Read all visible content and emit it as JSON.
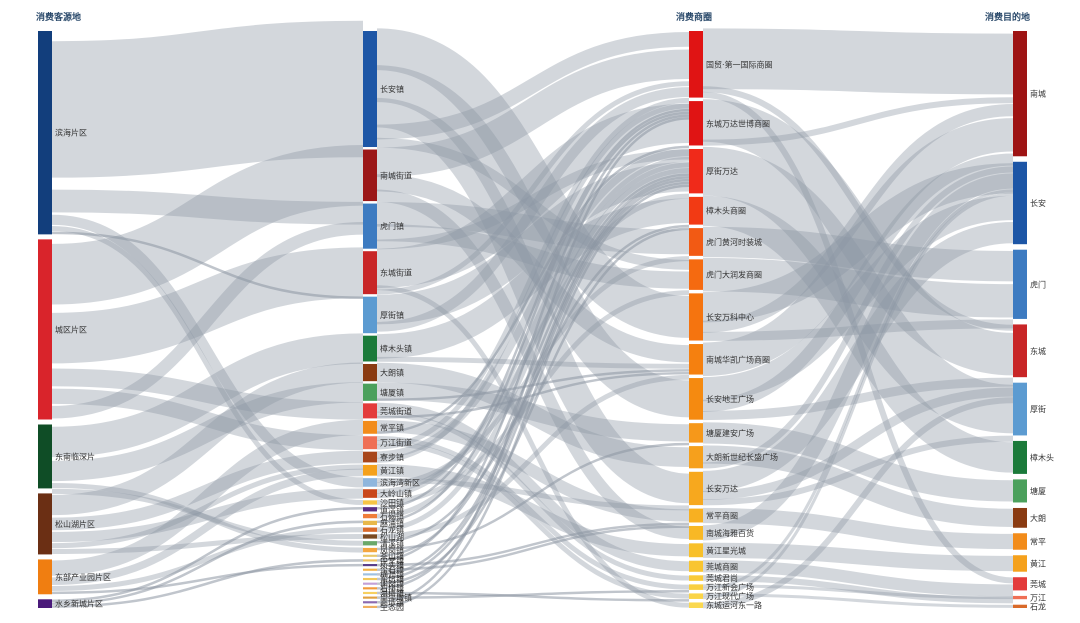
{
  "chart_data": {
    "type": "sankey",
    "title": "",
    "columns": [
      {
        "title": "消费客源地",
        "nodes": [
          {
            "name": "滨海片区",
            "value": 70,
            "color": "#123e7c"
          },
          {
            "name": "城区片区",
            "value": 62,
            "color": "#d9242b"
          },
          {
            "name": "东南临深片",
            "value": 22,
            "color": "#0f4d26"
          },
          {
            "name": "松山湖片区",
            "value": 21,
            "color": "#6b2f14"
          },
          {
            "name": "东部产业园片区",
            "value": 12,
            "color": "#f07e11"
          },
          {
            "name": "水乡新城片区",
            "value": 3,
            "color": "#4a1a7a"
          }
        ]
      },
      {
        "title": "",
        "nodes": [
          {
            "name": "长安镇",
            "value": 54,
            "color": "#1d56a6"
          },
          {
            "name": "南城街道",
            "value": 24,
            "color": "#9b1717"
          },
          {
            "name": "虎门镇",
            "value": 21,
            "color": "#3d7bc1"
          },
          {
            "name": "东城街道",
            "value": 20,
            "color": "#c82627"
          },
          {
            "name": "厚街镇",
            "value": 17,
            "color": "#5c9bd1"
          },
          {
            "name": "樟木头镇",
            "value": 12,
            "color": "#1b7a3a"
          },
          {
            "name": "大朗镇",
            "value": 8,
            "color": "#8a3b12"
          },
          {
            "name": "塘厦镇",
            "value": 8,
            "color": "#4ba05c"
          },
          {
            "name": "莞城街道",
            "value": 7,
            "color": "#e33b3b"
          },
          {
            "name": "常平镇",
            "value": 6,
            "color": "#f28c1b"
          },
          {
            "name": "万江街道",
            "value": 6,
            "color": "#ef6f55"
          },
          {
            "name": "寮步镇",
            "value": 5,
            "color": "#a8461a"
          },
          {
            "name": "黄江镇",
            "value": 5,
            "color": "#f5a11c"
          },
          {
            "name": "滨海湾新区",
            "value": 4,
            "color": "#8fb6dd"
          },
          {
            "name": "大岭山镇",
            "value": 4,
            "color": "#c9471a"
          },
          {
            "name": "沙田镇",
            "value": 2,
            "color": "#f6c445"
          },
          {
            "name": "道滘镇",
            "value": 2,
            "color": "#5a2d84"
          },
          {
            "name": "石碣镇",
            "value": 2,
            "color": "#f07e3a"
          },
          {
            "name": "麻涌镇",
            "value": 2,
            "color": "#e8b84a"
          },
          {
            "name": "石龙镇",
            "value": 2,
            "color": "#d96a2a"
          },
          {
            "name": "松山湖",
            "value": 2,
            "color": "#7a4a22"
          },
          {
            "name": "清溪镇",
            "value": 2,
            "color": "#6aa86a"
          },
          {
            "name": "凤岗镇",
            "value": 2,
            "color": "#f4a640"
          },
          {
            "name": "茶山镇",
            "value": 1,
            "color": "#e9c86a"
          },
          {
            "name": "中堂镇",
            "value": 1,
            "color": "#eec060"
          },
          {
            "name": "桥头镇",
            "value": 1,
            "color": "#5a3d8a"
          },
          {
            "name": "企石镇",
            "value": 1,
            "color": "#f3b248"
          },
          {
            "name": "横沥镇",
            "value": 1,
            "color": "#9ec0e0"
          },
          {
            "name": "东坑镇",
            "value": 1,
            "color": "#f2c85a"
          },
          {
            "name": "谢岗镇",
            "value": 1,
            "color": "#c4a0d6"
          },
          {
            "name": "石排镇",
            "value": 1,
            "color": "#f29a3a"
          },
          {
            "name": "洪梅镇",
            "value": 1,
            "color": "#f7d060"
          },
          {
            "name": "望牛墩镇",
            "value": 1,
            "color": "#e0a040"
          },
          {
            "name": "高埗镇",
            "value": 1,
            "color": "#8a6ab0"
          },
          {
            "name": "生态园",
            "value": 1,
            "color": "#f0b060"
          }
        ]
      },
      {
        "title": "消费商圈",
        "nodes": [
          {
            "name": "国贸·第一国际商圈",
            "value": 24,
            "color": "#e01414"
          },
          {
            "name": "东城万达世博商圈",
            "value": 16,
            "color": "#e01414"
          },
          {
            "name": "厚街万达",
            "value": 16,
            "color": "#f02a1a"
          },
          {
            "name": "樟木头商圈",
            "value": 10,
            "color": "#f23a14"
          },
          {
            "name": "虎门黄河时装城",
            "value": 10,
            "color": "#f25a14"
          },
          {
            "name": "虎门大润发商圈",
            "value": 11,
            "color": "#f56a10"
          },
          {
            "name": "长安万科中心",
            "value": 17,
            "color": "#f5740f"
          },
          {
            "name": "南城华凯广场商圈",
            "value": 11,
            "color": "#f5800f"
          },
          {
            "name": "长安地王广场",
            "value": 15,
            "color": "#f58a10"
          },
          {
            "name": "塘厦建安广场",
            "value": 7,
            "color": "#f6981a"
          },
          {
            "name": "大朗新世纪长盛广场",
            "value": 8,
            "color": "#f6a01c"
          },
          {
            "name": "长安万达",
            "value": 12,
            "color": "#f7a81e"
          },
          {
            "name": "常平商圈",
            "value": 5,
            "color": "#f8b021"
          },
          {
            "name": "南城海雅百货",
            "value": 5,
            "color": "#f8b825"
          },
          {
            "name": "黄江星光城",
            "value": 5,
            "color": "#f8c02a"
          },
          {
            "name": "莞城商圈",
            "value": 4,
            "color": "#f9c530"
          },
          {
            "name": "莞城君尚",
            "value": 2,
            "color": "#f9ca38"
          },
          {
            "name": "万江新会广场",
            "value": 2,
            "color": "#f9cf40"
          },
          {
            "name": "万江现代广场",
            "value": 2,
            "color": "#fad448"
          },
          {
            "name": "东城运河东一路",
            "value": 2,
            "color": "#fad850"
          }
        ]
      },
      {
        "title": "消费目的地",
        "nodes": [
          {
            "name": "南城",
            "value": 38,
            "color": "#9e1414"
          },
          {
            "name": "长安",
            "value": 25,
            "color": "#1d56a6"
          },
          {
            "name": "虎门",
            "value": 21,
            "color": "#3d7bc1"
          },
          {
            "name": "东城",
            "value": 16,
            "color": "#c82627"
          },
          {
            "name": "厚街",
            "value": 16,
            "color": "#5c9bd1"
          },
          {
            "name": "樟木头",
            "value": 10,
            "color": "#1b7a3a"
          },
          {
            "name": "塘厦",
            "value": 7,
            "color": "#4ba05c"
          },
          {
            "name": "大朗",
            "value": 6,
            "color": "#8a3b12"
          },
          {
            "name": "常平",
            "value": 5,
            "color": "#f28c1b"
          },
          {
            "name": "黄江",
            "value": 5,
            "color": "#f5a11c"
          },
          {
            "name": "莞城",
            "value": 4,
            "color": "#e33b3b"
          },
          {
            "name": "万江",
            "value": 1,
            "color": "#ef6f55"
          },
          {
            "name": "石龙",
            "value": 1,
            "color": "#d96a2a"
          }
        ]
      }
    ],
    "links_01": [
      [
        "滨海片区",
        "长安镇",
        54
      ],
      [
        "滨海片区",
        "虎门镇",
        9
      ],
      [
        "滨海片区",
        "滨海湾新区",
        4
      ],
      [
        "滨海片区",
        "沙田镇",
        2
      ],
      [
        "滨海片区",
        "厚街镇",
        1
      ],
      [
        "城区片区",
        "南城街道",
        24
      ],
      [
        "城区片区",
        "东城街道",
        20
      ],
      [
        "城区片区",
        "莞城街道",
        7
      ],
      [
        "城区片区",
        "万江街道",
        6
      ],
      [
        "城区片区",
        "虎门镇",
        5
      ],
      [
        "东南临深片",
        "樟木头镇",
        12
      ],
      [
        "东南临深片",
        "塘厦镇",
        8
      ],
      [
        "东南临深片",
        "凤岗镇",
        2
      ],
      [
        "东南临深片",
        "清溪镇",
        2
      ],
      [
        "松山湖片区",
        "大朗镇",
        8
      ],
      [
        "松山湖片区",
        "寮步镇",
        5
      ],
      [
        "松山湖片区",
        "大岭山镇",
        4
      ],
      [
        "松山湖片区",
        "黄江镇",
        2
      ],
      [
        "松山湖片区",
        "松山湖",
        2
      ],
      [
        "东部产业园片区",
        "常平镇",
        6
      ],
      [
        "东部产业园片区",
        "黄江镇",
        3
      ],
      [
        "东部产业园片区",
        "石龙镇",
        2
      ],
      [
        "东部产业园片区",
        "桥头镇",
        1
      ],
      [
        "水乡新城片区",
        "道滘镇",
        1
      ],
      [
        "水乡新城片区",
        "麻涌镇",
        1
      ],
      [
        "水乡新城片区",
        "中堂镇",
        1
      ]
    ],
    "links_12": [
      [
        "长安镇",
        "长安万科中心",
        17
      ],
      [
        "长安镇",
        "长安地王广场",
        15
      ],
      [
        "长安镇",
        "长安万达",
        12
      ],
      [
        "长安镇",
        "国贸·第一国际商圈",
        6
      ],
      [
        "长安镇",
        "虎门大润发商圈",
        4
      ],
      [
        "南城街道",
        "国贸·第一国际商圈",
        12
      ],
      [
        "南城街道",
        "南城华凯广场商圈",
        7
      ],
      [
        "南城街道",
        "南城海雅百货",
        5
      ],
      [
        "虎门镇",
        "虎门黄河时装城",
        10
      ],
      [
        "虎门镇",
        "虎门大润发商圈",
        7
      ],
      [
        "虎门镇",
        "厚街万达",
        4
      ],
      [
        "东城街道",
        "东城万达世博商圈",
        16
      ],
      [
        "东城街道",
        "东城运河东一路",
        2
      ],
      [
        "东城街道",
        "国贸·第一国际商圈",
        2
      ],
      [
        "厚街镇",
        "厚街万达",
        12
      ],
      [
        "厚街镇",
        "国贸·第一国际商圈",
        4
      ],
      [
        "樟木头镇",
        "樟木头商圈",
        10
      ],
      [
        "樟木头镇",
        "南城华凯广场商圈",
        2
      ],
      [
        "大朗镇",
        "大朗新世纪长盛广场",
        8
      ],
      [
        "塘厦镇",
        "塘厦建安广场",
        7
      ],
      [
        "塘厦镇",
        "南城华凯广场商圈",
        1
      ],
      [
        "莞城街道",
        "莞城商圈",
        4
      ],
      [
        "莞城街道",
        "莞城君尚",
        2
      ],
      [
        "莞城街道",
        "南城华凯广场商圈",
        1
      ],
      [
        "常平镇",
        "常平商圈",
        5
      ],
      [
        "常平镇",
        "东城万达世博商圈",
        1
      ],
      [
        "万江街道",
        "万江新会广场",
        2
      ],
      [
        "万江街道",
        "万江现代广场",
        2
      ],
      [
        "万江街道",
        "国贸·第一国际商圈",
        2
      ],
      [
        "寮步镇",
        "东城万达世博商圈",
        3
      ],
      [
        "寮步镇",
        "国贸·第一国际商圈",
        2
      ],
      [
        "黄江镇",
        "黄江星光城",
        5
      ],
      [
        "滨海湾新区",
        "长安万达",
        2
      ],
      [
        "滨海湾新区",
        "虎门黄河时装城",
        2
      ],
      [
        "大岭山镇",
        "厚街万达",
        2
      ],
      [
        "大岭山镇",
        "东城万达世博商圈",
        2
      ],
      [
        "沙田镇",
        "虎门大润发商圈",
        2
      ],
      [
        "道滘镇",
        "国贸·第一国际商圈",
        1
      ],
      [
        "石碣镇",
        "东城万达世博商圈",
        2
      ],
      [
        "麻涌镇",
        "国贸·第一国际商圈",
        1
      ],
      [
        "石龙镇",
        "东城万达世博商圈",
        2
      ],
      [
        "松山湖",
        "南城华凯广场商圈",
        2
      ],
      [
        "清溪镇",
        "樟木头商圈",
        1
      ],
      [
        "凤岗镇",
        "塘厦建安广场",
        1
      ],
      [
        "茶山镇",
        "东城万达世博商圈",
        1
      ],
      [
        "中堂镇",
        "国贸·第一国际商圈",
        1
      ],
      [
        "桥头镇",
        "常平商圈",
        1
      ],
      [
        "企石镇",
        "常平商圈",
        1
      ],
      [
        "横沥镇",
        "东城万达世博商圈",
        1
      ],
      [
        "东坑镇",
        "东城万达世博商圈",
        1
      ],
      [
        "谢岗镇",
        "樟木头商圈",
        1
      ],
      [
        "石排镇",
        "东城万达世博商圈",
        1
      ],
      [
        "洪梅镇",
        "万江现代广场",
        1
      ],
      [
        "望牛墩镇",
        "万江新会广场",
        1
      ],
      [
        "高埗镇",
        "国贸·第一国际商圈",
        1
      ],
      [
        "生态园",
        "东城万达世博商圈",
        1
      ]
    ],
    "links_23": [
      [
        "国贸·第一国际商圈",
        "南城",
        20
      ],
      [
        "国贸·第一国际商圈",
        "东城",
        2
      ],
      [
        "国贸·第一国际商圈",
        "莞城",
        2
      ],
      [
        "东城万达世博商圈",
        "东城",
        14
      ],
      [
        "东城万达世博商圈",
        "南城",
        2
      ],
      [
        "厚街万达",
        "厚街",
        16
      ],
      [
        "樟木头商圈",
        "樟木头",
        10
      ],
      [
        "虎门黄河时装城",
        "虎门",
        10
      ],
      [
        "虎门大润发商圈",
        "虎门",
        11
      ],
      [
        "长安万科中心",
        "长安",
        10
      ],
      [
        "长安万科中心",
        "南城",
        4
      ],
      [
        "长安万科中心",
        "虎门",
        3
      ],
      [
        "南城华凯广场商圈",
        "南城",
        11
      ],
      [
        "长安地王广场",
        "长安",
        8
      ],
      [
        "长安地王广场",
        "南城",
        4
      ],
      [
        "长安地王广场",
        "东城",
        3
      ],
      [
        "塘厦建安广场",
        "塘厦",
        7
      ],
      [
        "大朗新世纪长盛广场",
        "大朗",
        6
      ],
      [
        "大朗新世纪长盛广场",
        "南城",
        2
      ],
      [
        "长安万达",
        "长安",
        7
      ],
      [
        "长安万达",
        "东城",
        3
      ],
      [
        "长安万达",
        "厚街",
        2
      ],
      [
        "常平商圈",
        "常平",
        5
      ],
      [
        "南城海雅百货",
        "南城",
        5
      ],
      [
        "黄江星光城",
        "黄江",
        5
      ],
      [
        "莞城商圈",
        "莞城",
        4
      ],
      [
        "莞城君尚",
        "莞城",
        2
      ],
      [
        "万江新会广场",
        "万江",
        1
      ],
      [
        "万江新会广场",
        "南城",
        1
      ],
      [
        "万江现代广场",
        "石龙",
        1
      ],
      [
        "万江现代广场",
        "南城",
        1
      ],
      [
        "东城运河东一路",
        "东城",
        2
      ]
    ]
  }
}
